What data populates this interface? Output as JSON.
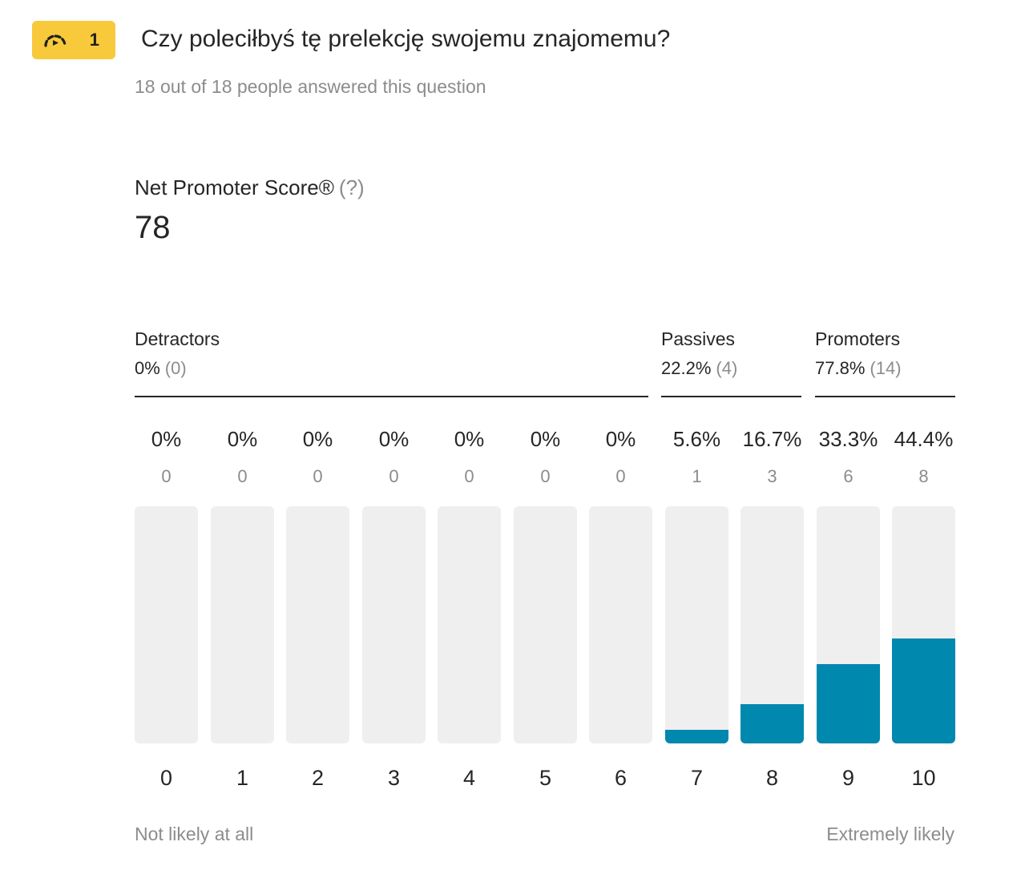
{
  "question": {
    "number": "1",
    "icon": "gauge-icon",
    "title": "Czy poleciłbyś tę prelekcję swojemu znajomemu?",
    "answered": "18 out of 18 people answered this question"
  },
  "nps": {
    "label": "Net Promoter Score®",
    "help": "(?)",
    "score": "78"
  },
  "groups": {
    "detractors": {
      "name": "Detractors",
      "percent": "0%",
      "count": "(0)"
    },
    "passives": {
      "name": "Passives",
      "percent": "22.2%",
      "count": "(4)"
    },
    "promoters": {
      "name": "Promoters",
      "percent": "77.8%",
      "count": "(14)"
    }
  },
  "colors": {
    "badge": "#f8c93a",
    "bar_fill": "#0088ae",
    "bar_track": "#efefef"
  },
  "chart_data": {
    "type": "bar",
    "categories": [
      "0",
      "1",
      "2",
      "3",
      "4",
      "5",
      "6",
      "7",
      "8",
      "9",
      "10"
    ],
    "percent_labels": [
      "0%",
      "0%",
      "0%",
      "0%",
      "0%",
      "0%",
      "0%",
      "5.6%",
      "16.7%",
      "33.3%",
      "44.4%"
    ],
    "counts": [
      0,
      0,
      0,
      0,
      0,
      0,
      0,
      1,
      3,
      6,
      8
    ],
    "values": [
      0,
      0,
      0,
      0,
      0,
      0,
      0,
      5.6,
      16.7,
      33.3,
      44.4
    ],
    "ylim": [
      0,
      100
    ]
  },
  "scale": {
    "left_label": "Not likely at all",
    "right_label": "Extremely likely"
  }
}
